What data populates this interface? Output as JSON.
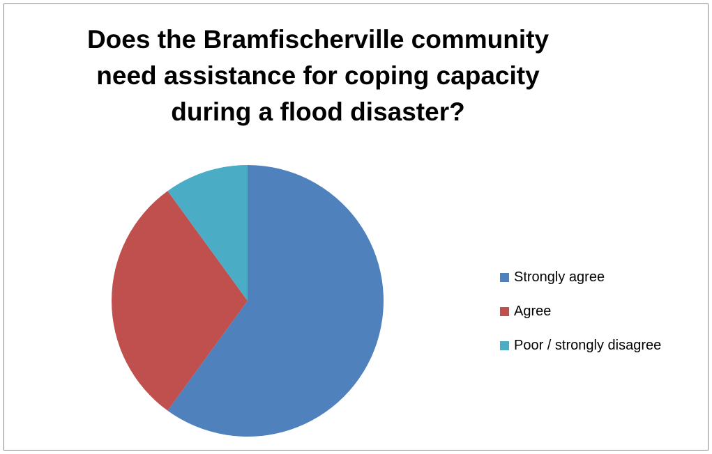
{
  "chart_data": {
    "type": "pie",
    "title": "Does the Bramfischerville  community\nneed assistance for coping capacity\nduring a flood disaster?",
    "categories": [
      "Strongly agree",
      "Agree",
      "Poor / strongly disagree"
    ],
    "values": [
      60,
      30,
      10
    ],
    "colors": [
      "#4F81BD",
      "#C0504D",
      "#4BACC6"
    ],
    "legend_position": "right"
  }
}
